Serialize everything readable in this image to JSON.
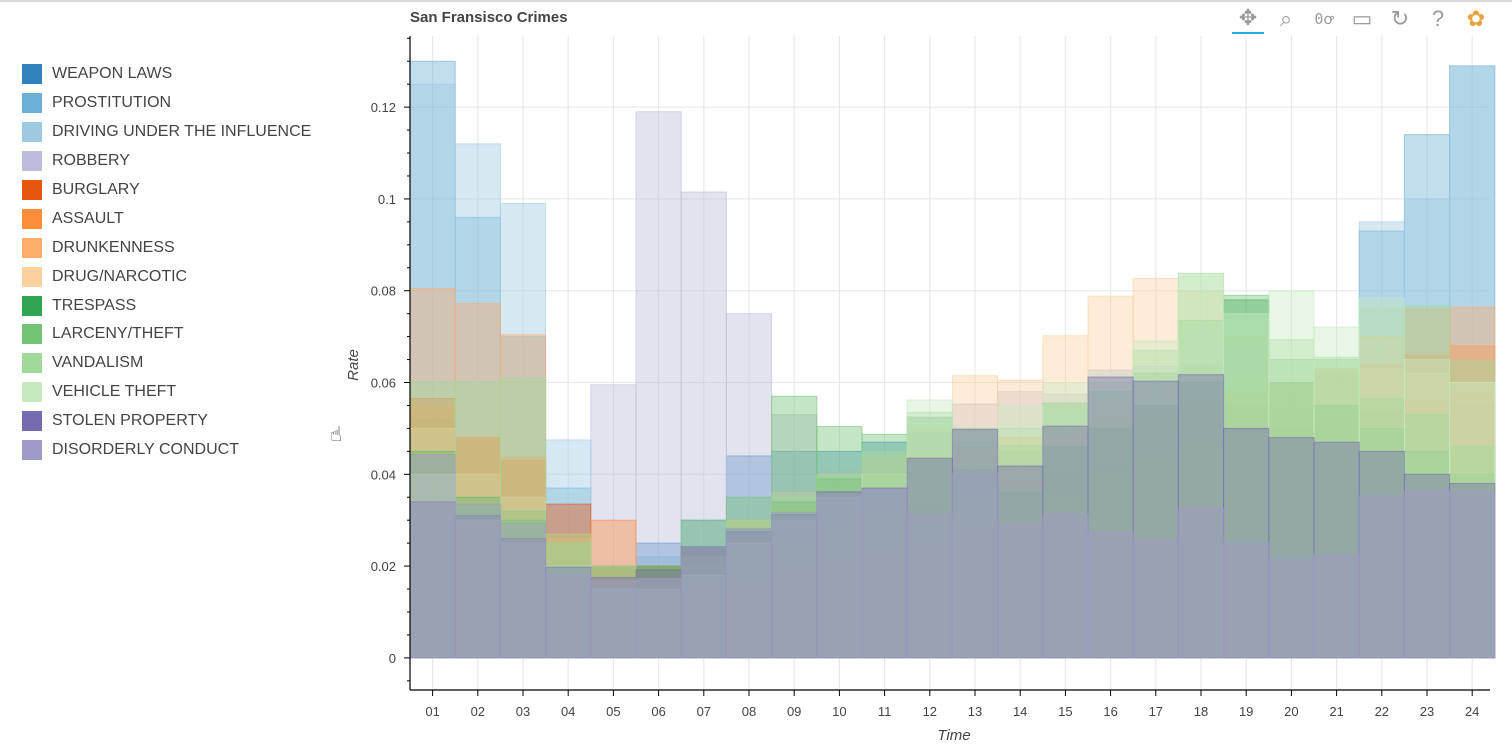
{
  "toolbar": {
    "tools": [
      {
        "name": "pan-tool-icon",
        "glyph": "✥",
        "active": true
      },
      {
        "name": "box-zoom-tool-icon",
        "glyph": "⌕",
        "active": false
      },
      {
        "name": "wheel-zoom-tool-icon",
        "glyph": "0ꝍ",
        "active": false
      },
      {
        "name": "save-tool-icon",
        "glyph": "▭",
        "active": false
      },
      {
        "name": "reset-tool-icon",
        "glyph": "↻",
        "active": false
      },
      {
        "name": "help-tool-icon",
        "glyph": "?",
        "active": false
      },
      {
        "name": "bokeh-logo-icon",
        "glyph": "✿",
        "active": false
      }
    ]
  },
  "chart_data": {
    "type": "bar",
    "title": "San Fransisco Crimes",
    "xlabel": "Time",
    "ylabel": "Rate",
    "ylim": [
      -0.007,
      0.1355
    ],
    "yticks": [
      0,
      0.02,
      0.04,
      0.06,
      0.08,
      0.1,
      0.12
    ],
    "ytick_labels": [
      "0",
      "0.02",
      "0.04",
      "0.06",
      "0.08",
      "0.1",
      "0.12"
    ],
    "categories": [
      "01",
      "02",
      "03",
      "04",
      "05",
      "06",
      "07",
      "08",
      "09",
      "10",
      "11",
      "12",
      "13",
      "14",
      "15",
      "16",
      "17",
      "18",
      "19",
      "20",
      "21",
      "22",
      "23",
      "24"
    ],
    "grid": true,
    "legend_position": "left",
    "series": [
      {
        "name": "WEAPON LAWS",
        "color": "#3182bd",
        "values": [
          0.052,
          0.04,
          0.033,
          0.023,
          0.018,
          0.025,
          0.03,
          0.044,
          0.045,
          0.045,
          0.047,
          0.049,
          0.047,
          0.045,
          0.043,
          0.045,
          0.046,
          0.048,
          0.05,
          0.05,
          0.05,
          0.05,
          0.052,
          0.055
        ]
      },
      {
        "name": "PROSTITUTION",
        "color": "#6baed6",
        "values": [
          0.13,
          0.096,
          0.07,
          0.037,
          0.02,
          0.022,
          0.023,
          0.03,
          0.03,
          0.034,
          0.04,
          0.042,
          0.042,
          0.04,
          0.04,
          0.042,
          0.045,
          0.048,
          0.05,
          0.05,
          0.055,
          0.093,
          0.114,
          0.129
        ]
      },
      {
        "name": "DRIVING UNDER THE INFLUENCE",
        "color": "#9ecae1",
        "values": [
          0.125,
          0.112,
          0.099,
          0.0475,
          0.02,
          0.015,
          0.014,
          0.016,
          0.02,
          0.024,
          0.028,
          0.03,
          0.034,
          0.038,
          0.042,
          0.045,
          0.048,
          0.05,
          0.052,
          0.053,
          0.055,
          0.095,
          0.1,
          0.129
        ]
      },
      {
        "name": "ROBBERY",
        "color": "#bcbddc",
        "values": [
          0.046,
          0.038,
          0.031,
          0.024,
          0.0595,
          0.119,
          0.1015,
          0.075,
          0.053,
          0.041,
          0.0435,
          0.0525,
          0.0553,
          0.058,
          0.0575,
          0.0627,
          0.0635,
          0.064,
          0.055,
          0.0497,
          0.0475,
          0.0462,
          0.04,
          0.036
        ]
      },
      {
        "name": "BURGLARY",
        "color": "#e6550d",
        "values": [
          0.0565,
          0.048,
          0.043,
          0.0335,
          0.02,
          0.02,
          0.022,
          0.024,
          0.026,
          0.03,
          0.032,
          0.034,
          0.036,
          0.038,
          0.04,
          0.042,
          0.044,
          0.046,
          0.048,
          0.05,
          0.052,
          0.054,
          0.056,
          0.058
        ]
      },
      {
        "name": "ASSAULT",
        "color": "#fd8d3c",
        "values": [
          0.055,
          0.048,
          0.0437,
          0.027,
          0.03,
          0.02,
          0.024,
          0.03,
          0.033,
          0.036,
          0.04,
          0.044,
          0.046,
          0.048,
          0.05,
          0.052,
          0.054,
          0.056,
          0.058,
          0.06,
          0.062,
          0.064,
          0.066,
          0.068
        ]
      },
      {
        "name": "DRUNKENNESS",
        "color": "#fdae6b",
        "values": [
          0.0805,
          0.0772,
          0.0704,
          0.026,
          0.017,
          0.0145,
          0.015,
          0.016,
          0.018,
          0.02,
          0.022,
          0.024,
          0.027,
          0.03,
          0.035,
          0.04,
          0.045,
          0.05,
          0.055,
          0.058,
          0.063,
          0.07,
          0.076,
          0.0764
        ]
      },
      {
        "name": "DRUG/NARCOTIC",
        "color": "#fdd0a2",
        "values": [
          0.05,
          0.04,
          0.035,
          0.025,
          0.015,
          0.014,
          0.02,
          0.03,
          0.036,
          0.04,
          0.044,
          0.05,
          0.0615,
          0.0605,
          0.0702,
          0.0788,
          0.0827,
          0.08,
          0.07,
          0.06,
          0.063,
          0.0629,
          0.062,
          0.06
        ]
      },
      {
        "name": "TRESPASS",
        "color": "#31a354",
        "values": [
          0.045,
          0.035,
          0.03,
          0.02,
          0.015,
          0.02,
          0.024,
          0.028,
          0.034,
          0.039,
          0.04,
          0.043,
          0.041,
          0.036,
          0.046,
          0.05,
          0.055,
          0.06,
          0.078,
          0.06,
          0.055,
          0.05,
          0.045,
          0.04
        ]
      },
      {
        "name": "LARCENY/THEFT",
        "color": "#74c476",
        "values": [
          0.03,
          0.033,
          0.032,
          0.025,
          0.02,
          0.02,
          0.03,
          0.035,
          0.057,
          0.0504,
          0.0487,
          0.0523,
          0.05,
          0.0462,
          0.0555,
          0.058,
          0.062,
          0.0735,
          0.079,
          0.065,
          0.065,
          0.0565,
          0.053,
          0.046
        ]
      },
      {
        "name": "VANDALISM",
        "color": "#a1d99b",
        "values": [
          0.0602,
          0.0602,
          0.061,
          0.027,
          0.02,
          0.017,
          0.022,
          0.03,
          0.035,
          0.04,
          0.045,
          0.0535,
          0.05,
          0.05,
          0.055,
          0.06,
          0.067,
          0.0838,
          0.0736,
          0.0693,
          0.0655,
          0.0762,
          0.0767,
          0.0647
        ]
      },
      {
        "name": "VEHICLE THEFT",
        "color": "#c7e9c0",
        "values": [
          0.04,
          0.03,
          0.025,
          0.02,
          0.015,
          0.015,
          0.018,
          0.025,
          0.03,
          0.035,
          0.04,
          0.0562,
          0.05,
          0.055,
          0.06,
          0.062,
          0.069,
          0.0831,
          0.075,
          0.0799,
          0.0721,
          0.0784,
          0.065,
          0.06
        ]
      },
      {
        "name": "STOLEN PROPERTY",
        "color": "#756bb1",
        "values": [
          0.034,
          0.031,
          0.026,
          0.0198,
          0.0175,
          0.0192,
          0.0242,
          0.0275,
          0.0312,
          0.0362,
          0.037,
          0.0435,
          0.0498,
          0.0418,
          0.0505,
          0.0612,
          0.0603,
          0.0617,
          0.05,
          0.048,
          0.047,
          0.045,
          0.04,
          0.038
        ]
      },
      {
        "name": "DISORDERLY CONDUCT",
        "color": "#9e9ac8",
        "values": [
          0.0443,
          0.0335,
          0.0293,
          0.0183,
          0.0168,
          0.0173,
          0.024,
          0.0282,
          0.0317,
          0.0357,
          0.0368,
          0.0312,
          0.0402,
          0.0292,
          0.0313,
          0.0275,
          0.0257,
          0.0325,
          0.0252,
          0.0218,
          0.0225,
          0.0353,
          0.0364,
          0.0361
        ]
      }
    ]
  }
}
